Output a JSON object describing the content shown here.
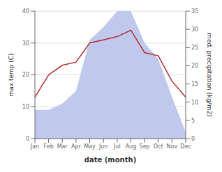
{
  "chart_data": {
    "type": "line",
    "xlabel": "date (month)",
    "ylabel": "max temp (C)",
    "y2label": "med. precipitation (kg/m2)",
    "categories": [
      "Jan",
      "Feb",
      "Mar",
      "Apr",
      "May",
      "Jun",
      "Jul",
      "Aug",
      "Sep",
      "Oct",
      "Nov",
      "Dec"
    ],
    "series": [
      {
        "type": "area",
        "color": "#c0c8ee",
        "values": [
          9,
          9,
          11,
          15,
          31,
          35,
          40,
          40,
          30,
          25,
          13,
          2
        ]
      },
      {
        "type": "line",
        "color": "#b03030",
        "values": [
          13,
          20,
          23,
          24,
          30,
          31,
          32,
          34,
          27,
          26,
          18,
          13
        ]
      }
    ],
    "ylim": [
      0,
      40
    ],
    "yticks": [
      0,
      10,
      20,
      30,
      40
    ],
    "y2lim": [
      0,
      35
    ],
    "y2ticks": [
      0,
      5,
      10,
      15,
      20,
      25,
      30,
      35
    ],
    "grid": true
  }
}
